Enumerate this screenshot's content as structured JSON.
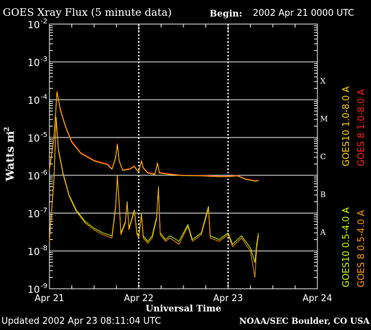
{
  "header": {
    "title": "GOES Xray Flux (5 minute data)",
    "begin_label": "Begin:",
    "begin_value": "2002 Apr 21 0000 UTC"
  },
  "footer": {
    "updated": "Updated 2002 Apr 23 08:11:04 UTC",
    "credit": "NOAA/SEC Boulder, CO USA"
  },
  "chart_data": {
    "type": "line",
    "title": "GOES Xray Flux (5 minute data)",
    "xlabel": "Universal Time",
    "ylabel": "Watts m",
    "ylabel_exponent": "-2",
    "xlim_days": [
      0,
      3
    ],
    "ylim": [
      1e-09,
      0.01
    ],
    "yscale": "log",
    "x_ticks": [
      {
        "label": "Apr 21",
        "day": 0
      },
      {
        "label": "Apr 22",
        "day": 1
      },
      {
        "label": "Apr 23",
        "day": 2
      },
      {
        "label": "Apr 24",
        "day": 3
      }
    ],
    "y_ticks": [
      {
        "base": "10",
        "exp": "-2",
        "value": 0.01
      },
      {
        "base": "10",
        "exp": "-3",
        "value": 0.001
      },
      {
        "base": "10",
        "exp": "-4",
        "value": 0.0001
      },
      {
        "base": "10",
        "exp": "-5",
        "value": 1e-05
      },
      {
        "base": "10",
        "exp": "-6",
        "value": 1e-06
      },
      {
        "base": "10",
        "exp": "-7",
        "value": 1e-07
      },
      {
        "base": "10",
        "exp": "-8",
        "value": 1e-08
      },
      {
        "base": "10",
        "exp": "-9",
        "value": 1e-09
      }
    ],
    "flare_classes": [
      {
        "label": "X",
        "value": 0.000316
      },
      {
        "label": "M",
        "value": 3.16e-05
      },
      {
        "label": "C",
        "value": 3.16e-06
      },
      {
        "label": "B",
        "value": 3.16e-07
      },
      {
        "label": "A",
        "value": 3.16e-08
      }
    ],
    "grid": true,
    "legend": [
      {
        "name": "GOES10 1.0-8.0 A",
        "color": "#ffd000"
      },
      {
        "name": "GOES 8 1.0-8.0 A",
        "color": "#ff2020"
      },
      {
        "name": "GOES10 0.5-4.0 A",
        "color": "#c8ff00"
      },
      {
        "name": "GOES 8 0.5-4.0 A",
        "color": "#ff9a00"
      }
    ],
    "series": [
      {
        "name": "GOES 8 1.0-8.0 A",
        "color": "#ff2020",
        "points": [
          [
            0.0,
            1.5e-06
          ],
          [
            0.05,
            1e-05
          ],
          [
            0.085,
            0.00017
          ],
          [
            0.12,
            6e-05
          ],
          [
            0.18,
            2e-05
          ],
          [
            0.25,
            8e-06
          ],
          [
            0.35,
            4e-06
          ],
          [
            0.5,
            2.5e-06
          ],
          [
            0.65,
            2e-06
          ],
          [
            0.7,
            1.5e-06
          ],
          [
            0.74,
            3e-06
          ],
          [
            0.76,
            7e-06
          ],
          [
            0.78,
            2.5e-06
          ],
          [
            0.82,
            1.4e-06
          ],
          [
            0.9,
            1.5e-06
          ],
          [
            0.95,
            1.8e-06
          ],
          [
            0.98,
            1.4e-06
          ],
          [
            1.0,
            1.3e-06
          ],
          [
            1.03,
            2.5e-06
          ],
          [
            1.05,
            1.6e-06
          ],
          [
            1.1,
            1.2e-06
          ],
          [
            1.18,
            1.1e-06
          ],
          [
            1.21,
            2.2e-06
          ],
          [
            1.23,
            1.2e-06
          ],
          [
            1.35,
            1.1e-06
          ],
          [
            1.5,
            1e-06
          ],
          [
            1.7,
            1e-06
          ],
          [
            1.9,
            9.5e-07
          ],
          [
            2.0,
            9.5e-07
          ],
          [
            2.1,
            1e-06
          ],
          [
            2.2,
            8e-07
          ],
          [
            2.3,
            7.2e-07
          ],
          [
            2.34,
            7.5e-07
          ]
        ]
      },
      {
        "name": "GOES10 1.0-8.0 A",
        "color": "#ffd000",
        "points": [
          [
            0.0,
            1.4e-06
          ],
          [
            0.05,
            9.5e-06
          ],
          [
            0.085,
            0.00016
          ],
          [
            0.12,
            5.5e-05
          ],
          [
            0.18,
            1.9e-05
          ],
          [
            0.25,
            7.5e-06
          ],
          [
            0.35,
            3.8e-06
          ],
          [
            0.5,
            2.4e-06
          ],
          [
            0.65,
            1.9e-06
          ],
          [
            0.7,
            1.45e-06
          ],
          [
            0.74,
            2.8e-06
          ],
          [
            0.76,
            6.5e-06
          ],
          [
            0.78,
            2.4e-06
          ],
          [
            0.82,
            1.35e-06
          ],
          [
            0.9,
            1.45e-06
          ],
          [
            0.95,
            1.7e-06
          ],
          [
            0.98,
            1.35e-06
          ],
          [
            1.0,
            1.25e-06
          ],
          [
            1.03,
            2.4e-06
          ],
          [
            1.05,
            1.55e-06
          ],
          [
            1.1,
            1.15e-06
          ],
          [
            1.18,
            1.05e-06
          ],
          [
            1.21,
            2.1e-06
          ],
          [
            1.23,
            1.15e-06
          ],
          [
            1.35,
            1.05e-06
          ],
          [
            1.5,
            9.8e-07
          ],
          [
            1.7,
            9.7e-07
          ],
          [
            1.9,
            9.2e-07
          ],
          [
            2.0,
            9.2e-07
          ],
          [
            2.1,
            9.7e-07
          ],
          [
            2.2,
            7.8e-07
          ],
          [
            2.3,
            7e-07
          ],
          [
            2.34,
            7.2e-07
          ]
        ]
      },
      {
        "name": "GOES10 0.5-4.0 A",
        "color": "#c8ff00",
        "points": [
          [
            0.0,
            2e-08
          ],
          [
            0.05,
            8e-07
          ],
          [
            0.075,
            3.5e-05
          ],
          [
            0.1,
            5e-06
          ],
          [
            0.15,
            1.2e-06
          ],
          [
            0.22,
            3e-07
          ],
          [
            0.3,
            1.2e-07
          ],
          [
            0.4,
            6e-08
          ],
          [
            0.5,
            4e-08
          ],
          [
            0.6,
            3e-08
          ],
          [
            0.7,
            2.5e-08
          ],
          [
            0.74,
            1.5e-07
          ],
          [
            0.76,
            1e-06
          ],
          [
            0.78,
            2e-07
          ],
          [
            0.8,
            3e-08
          ],
          [
            0.85,
            6e-08
          ],
          [
            0.87,
            2e-07
          ],
          [
            0.89,
            4e-08
          ],
          [
            0.95,
            1.2e-07
          ],
          [
            0.98,
            3e-08
          ],
          [
            1.0,
            2.5e-08
          ],
          [
            1.03,
            1e-07
          ],
          [
            1.05,
            2.5e-08
          ],
          [
            1.1,
            1.8e-08
          ],
          [
            1.15,
            2.5e-08
          ],
          [
            1.2,
            8e-08
          ],
          [
            1.22,
            5e-07
          ],
          [
            1.24,
            3e-08
          ],
          [
            1.3,
            2e-08
          ],
          [
            1.35,
            2.5e-08
          ],
          [
            1.45,
            1.8e-08
          ],
          [
            1.55,
            5e-08
          ],
          [
            1.6,
            2e-08
          ],
          [
            1.7,
            3e-08
          ],
          [
            1.78,
            1.5e-07
          ],
          [
            1.8,
            2.5e-08
          ],
          [
            1.9,
            2e-08
          ],
          [
            2.0,
            3e-08
          ],
          [
            2.05,
            1.5e-08
          ],
          [
            2.15,
            2.5e-08
          ],
          [
            2.25,
            1.2e-08
          ],
          [
            2.3,
            5e-09
          ],
          [
            2.32,
            1.5e-08
          ],
          [
            2.34,
            3e-08
          ]
        ]
      },
      {
        "name": "GOES 8 0.5-4.0 A",
        "color": "#ff9a00",
        "points": [
          [
            0.0,
            1.8e-08
          ],
          [
            0.05,
            7e-07
          ],
          [
            0.075,
            3e-05
          ],
          [
            0.1,
            4.5e-06
          ],
          [
            0.15,
            1.1e-06
          ],
          [
            0.22,
            2.8e-07
          ],
          [
            0.3,
            1.1e-07
          ],
          [
            0.4,
            5.5e-08
          ],
          [
            0.5,
            3.6e-08
          ],
          [
            0.6,
            2.7e-08
          ],
          [
            0.7,
            2.2e-08
          ],
          [
            0.74,
            1.3e-07
          ],
          [
            0.76,
            9e-07
          ],
          [
            0.78,
            1.8e-07
          ],
          [
            0.8,
            2.7e-08
          ],
          [
            0.85,
            5.5e-08
          ],
          [
            0.87,
            1.8e-07
          ],
          [
            0.89,
            3.6e-08
          ],
          [
            0.95,
            1.1e-07
          ],
          [
            0.98,
            2.7e-08
          ],
          [
            1.0,
            2.2e-08
          ],
          [
            1.03,
            9e-08
          ],
          [
            1.05,
            2.2e-08
          ],
          [
            1.1,
            1.6e-08
          ],
          [
            1.15,
            2.2e-08
          ],
          [
            1.2,
            7e-08
          ],
          [
            1.22,
            4.5e-07
          ],
          [
            1.24,
            2.7e-08
          ],
          [
            1.3,
            1.8e-08
          ],
          [
            1.35,
            2.2e-08
          ],
          [
            1.45,
            1.5e-08
          ],
          [
            1.55,
            4.5e-08
          ],
          [
            1.6,
            1.8e-08
          ],
          [
            1.7,
            2.7e-08
          ],
          [
            1.78,
            1.3e-07
          ],
          [
            1.8,
            2.2e-08
          ],
          [
            1.9,
            1.8e-08
          ],
          [
            2.0,
            2.7e-08
          ],
          [
            2.05,
            1.3e-08
          ],
          [
            2.15,
            2.2e-08
          ],
          [
            2.25,
            1e-08
          ],
          [
            2.3,
            2e-09
          ],
          [
            2.32,
            1.2e-08
          ],
          [
            2.34,
            2.5e-08
          ]
        ]
      }
    ]
  }
}
